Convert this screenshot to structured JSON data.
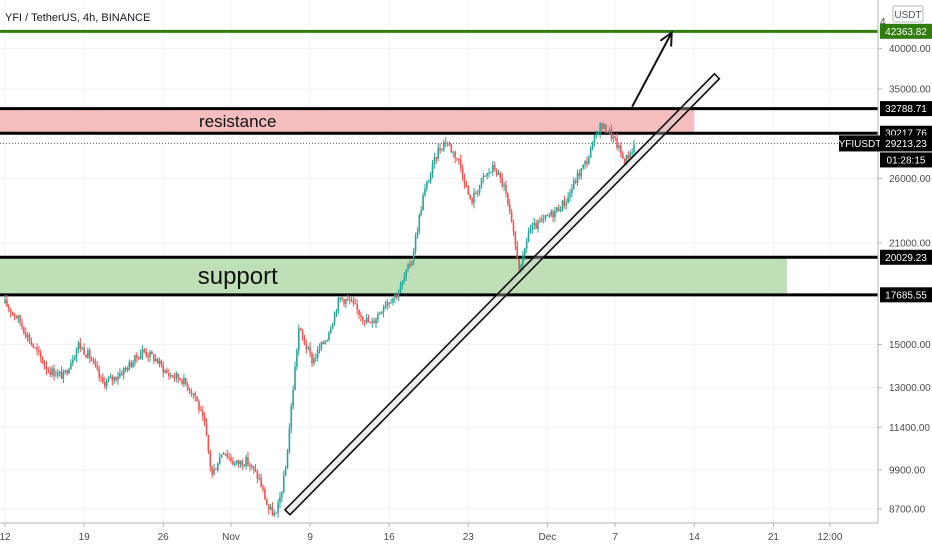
{
  "header": {
    "symbol_title": "YFI / TetherUS, 4h, BINANCE",
    "currency_unit": "USDT"
  },
  "zones": {
    "resistance": {
      "label": "resistance",
      "from": 30217.76,
      "to": 32788.71,
      "color": "#f4b6b6"
    },
    "support": {
      "label": "support",
      "from": 17685.55,
      "to": 20029.23,
      "color": "#b8dcae"
    }
  },
  "levels": [
    {
      "value": 42363.82,
      "label": "42363.82",
      "color": "#2f7d0c"
    },
    {
      "value": 32788.71,
      "label": "32788.71",
      "color": "#000000"
    },
    {
      "value": 30217.76,
      "label": "30217.76",
      "color": "#000000"
    },
    {
      "value": 20029.23,
      "label": "20029.23",
      "color": "#000000"
    },
    {
      "value": 17685.55,
      "label": "17685.55",
      "color": "#000000"
    }
  ],
  "last_price": {
    "symbol": "YFIUSDT",
    "value": "29213.23",
    "countdown": "01:28:15"
  },
  "y_axis": {
    "ticks": [
      {
        "value": 40000,
        "label": "40000.00"
      },
      {
        "value": 35000,
        "label": "35000.00"
      },
      {
        "value": 26000,
        "label": "26000.00"
      },
      {
        "value": 21000,
        "label": "21000.00"
      },
      {
        "value": 15000,
        "label": "15000.00"
      },
      {
        "value": 13000,
        "label": "13000.00"
      },
      {
        "value": 11400,
        "label": "11400.00"
      },
      {
        "value": 9900,
        "label": "9900.00"
      },
      {
        "value": 8700,
        "label": "8700.00"
      }
    ],
    "top_partial_label": "4"
  },
  "x_axis": {
    "ticks": [
      {
        "day": 0,
        "label": "12"
      },
      {
        "day": 7,
        "label": "19"
      },
      {
        "day": 14,
        "label": "26"
      },
      {
        "day": 20,
        "label": "Nov"
      },
      {
        "day": 27,
        "label": "9"
      },
      {
        "day": 34,
        "label": "16"
      },
      {
        "day": 41,
        "label": "23"
      },
      {
        "day": 48,
        "label": "Dec"
      },
      {
        "day": 54,
        "label": "7"
      },
      {
        "day": 61,
        "label": "14"
      },
      {
        "day": 68,
        "label": "21"
      },
      {
        "day": 73,
        "label": "12:00"
      }
    ]
  },
  "colors": {
    "up": "#26a69a",
    "down": "#ef5350"
  },
  "chart_data": {
    "type": "candlestick",
    "title": "YFI / TetherUS, 4h, BINANCE",
    "y_scale": "log",
    "ylim": [
      8300,
      47000
    ],
    "x_unit": "days since Oct 12",
    "xlim": [
      0,
      76
    ],
    "last_price": 29213.23,
    "series": [
      {
        "name": "YFIUSDT",
        "path": [
          [
            0.0,
            17200
          ],
          [
            1.2,
            16300
          ],
          [
            2.4,
            15000
          ],
          [
            3.8,
            13800
          ],
          [
            5.2,
            13500
          ],
          [
            6.5,
            15000
          ],
          [
            7.5,
            14400
          ],
          [
            8.6,
            13200
          ],
          [
            9.6,
            13400
          ],
          [
            11.0,
            14000
          ],
          [
            12.2,
            14700
          ],
          [
            13.3,
            14300
          ],
          [
            14.4,
            13600
          ],
          [
            15.6,
            13400
          ],
          [
            16.8,
            12700
          ],
          [
            17.7,
            11400
          ],
          [
            18.3,
            9700
          ],
          [
            19.3,
            10600
          ],
          [
            20.3,
            10100
          ],
          [
            21.4,
            10200
          ],
          [
            22.5,
            9600
          ],
          [
            23.3,
            8700
          ],
          [
            24.0,
            8500
          ],
          [
            24.8,
            9800
          ],
          [
            25.4,
            12500
          ],
          [
            26.0,
            15800
          ],
          [
            27.2,
            14200
          ],
          [
            28.5,
            15400
          ],
          [
            29.6,
            17500
          ],
          [
            30.5,
            17300
          ],
          [
            31.3,
            16700
          ],
          [
            32.4,
            16000
          ],
          [
            33.6,
            17200
          ],
          [
            34.8,
            17800
          ],
          [
            36.0,
            19900
          ],
          [
            37.0,
            24500
          ],
          [
            38.3,
            28500
          ],
          [
            39.0,
            29500
          ],
          [
            40.2,
            27500
          ],
          [
            41.2,
            24000
          ],
          [
            42.3,
            26000
          ],
          [
            43.3,
            27000
          ],
          [
            44.2,
            25200
          ],
          [
            45.0,
            21500
          ],
          [
            45.6,
            19000
          ],
          [
            46.3,
            21800
          ],
          [
            47.3,
            22400
          ],
          [
            48.5,
            23200
          ],
          [
            49.7,
            24200
          ],
          [
            50.6,
            26100
          ],
          [
            51.6,
            27800
          ],
          [
            52.6,
            31000
          ],
          [
            53.4,
            30500
          ],
          [
            54.2,
            29000
          ],
          [
            54.8,
            27500
          ],
          [
            55.8,
            29213
          ]
        ]
      }
    ],
    "annotations": [
      {
        "type": "zone",
        "label": "resistance",
        "from": 30217.76,
        "to": 32788.71
      },
      {
        "type": "zone",
        "label": "support",
        "from": 17685.55,
        "to": 20029.23
      },
      {
        "type": "hline",
        "value": 42363.82
      },
      {
        "type": "hline",
        "value": 32788.71
      },
      {
        "type": "hline",
        "value": 30217.76
      },
      {
        "type": "hline",
        "value": 20029.23
      },
      {
        "type": "hline",
        "value": 17685.55
      },
      {
        "type": "trend-channel",
        "from": [
          25.0,
          8600
        ],
        "to": [
          63.0,
          36500
        ]
      },
      {
        "type": "arrow",
        "from": [
          55.5,
          33000
        ],
        "to": [
          59.0,
          42200
        ]
      }
    ]
  }
}
